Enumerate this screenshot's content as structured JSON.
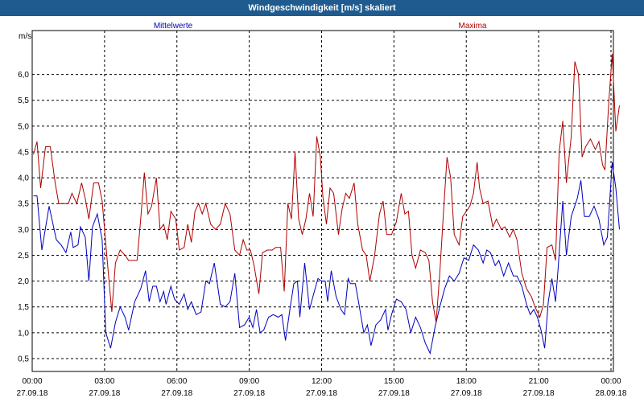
{
  "window": {
    "title": "Windgeschwindigkeit [m/s] skaliert"
  },
  "colors": {
    "mean": "#0000c0",
    "max": "#b00000",
    "grid": "#000000",
    "titlebar": "#1f5b8f"
  },
  "chart_data": {
    "type": "line",
    "title": "Windgeschwindigkeit [m/s] skaliert",
    "ylabel": "m/s",
    "xlabel": "",
    "ylim": [
      0.25,
      6.85
    ],
    "xlim": [
      0,
      24
    ],
    "grid": true,
    "yticks": [
      "0,5",
      "1,0",
      "1,5",
      "2,0",
      "2,5",
      "3,0",
      "3,5",
      "4,0",
      "4,5",
      "5,0",
      "5,5",
      "6,0"
    ],
    "ytick_values": [
      0.5,
      1.0,
      1.5,
      2.0,
      2.5,
      3.0,
      3.5,
      4.0,
      4.5,
      5.0,
      5.5,
      6.0
    ],
    "xticks": [
      {
        "time": "00:00",
        "date": "27.09.18",
        "x": 0
      },
      {
        "time": "03:00",
        "date": "27.09.18",
        "x": 3
      },
      {
        "time": "06:00",
        "date": "27.09.18",
        "x": 6
      },
      {
        "time": "09:00",
        "date": "27.09.18",
        "x": 9
      },
      {
        "time": "12:00",
        "date": "27.09.18",
        "x": 12
      },
      {
        "time": "15:00",
        "date": "27.09.18",
        "x": 15
      },
      {
        "time": "18:00",
        "date": "27.09.18",
        "x": 18
      },
      {
        "time": "21:00",
        "date": "27.09.18",
        "x": 21
      },
      {
        "time": "00:00",
        "date": "28.09.18",
        "x": 24
      }
    ],
    "series": [
      {
        "name": "Mittelwerte",
        "color": "#0000c0",
        "points": [
          [
            0.05,
            3.65
          ],
          [
            0.2,
            3.65
          ],
          [
            0.4,
            2.6
          ],
          [
            0.7,
            3.45
          ],
          [
            1.0,
            2.8
          ],
          [
            1.2,
            2.7
          ],
          [
            1.4,
            2.55
          ],
          [
            1.6,
            2.95
          ],
          [
            1.7,
            2.65
          ],
          [
            1.9,
            2.7
          ],
          [
            2.0,
            3.05
          ],
          [
            2.2,
            2.85
          ],
          [
            2.35,
            2.0
          ],
          [
            2.5,
            3.05
          ],
          [
            2.7,
            3.3
          ],
          [
            2.9,
            2.8
          ],
          [
            3.05,
            1.0
          ],
          [
            3.25,
            0.7
          ],
          [
            3.45,
            1.2
          ],
          [
            3.65,
            1.5
          ],
          [
            3.85,
            1.3
          ],
          [
            4.0,
            1.05
          ],
          [
            4.25,
            1.6
          ],
          [
            4.5,
            1.85
          ],
          [
            4.7,
            2.2
          ],
          [
            4.85,
            1.6
          ],
          [
            5.0,
            1.9
          ],
          [
            5.15,
            1.9
          ],
          [
            5.3,
            1.6
          ],
          [
            5.45,
            1.8
          ],
          [
            5.55,
            1.55
          ],
          [
            5.75,
            1.9
          ],
          [
            5.9,
            1.65
          ],
          [
            6.1,
            1.55
          ],
          [
            6.3,
            1.75
          ],
          [
            6.45,
            1.45
          ],
          [
            6.6,
            1.6
          ],
          [
            6.8,
            1.35
          ],
          [
            7.0,
            1.4
          ],
          [
            7.2,
            2.0
          ],
          [
            7.35,
            1.95
          ],
          [
            7.55,
            2.35
          ],
          [
            7.8,
            1.55
          ],
          [
            8.0,
            1.5
          ],
          [
            8.2,
            1.6
          ],
          [
            8.4,
            2.15
          ],
          [
            8.6,
            1.1
          ],
          [
            8.8,
            1.15
          ],
          [
            9.0,
            1.3
          ],
          [
            9.15,
            1.1
          ],
          [
            9.3,
            1.45
          ],
          [
            9.45,
            1.0
          ],
          [
            9.6,
            1.05
          ],
          [
            9.8,
            1.3
          ],
          [
            10.0,
            1.35
          ],
          [
            10.2,
            1.3
          ],
          [
            10.35,
            1.35
          ],
          [
            10.5,
            0.85
          ],
          [
            10.7,
            1.5
          ],
          [
            10.85,
            1.95
          ],
          [
            11.0,
            2.0
          ],
          [
            11.1,
            1.3
          ],
          [
            11.3,
            2.35
          ],
          [
            11.5,
            1.45
          ],
          [
            11.7,
            1.8
          ],
          [
            11.85,
            2.05
          ],
          [
            12.0,
            2.0
          ],
          [
            12.15,
            2.0
          ],
          [
            12.25,
            1.6
          ],
          [
            12.4,
            2.2
          ],
          [
            12.6,
            1.7
          ],
          [
            12.8,
            1.45
          ],
          [
            12.95,
            1.35
          ],
          [
            13.1,
            2.05
          ],
          [
            13.2,
            1.95
          ],
          [
            13.4,
            1.95
          ],
          [
            13.55,
            1.55
          ],
          [
            13.75,
            1.0
          ],
          [
            13.9,
            1.15
          ],
          [
            14.05,
            0.75
          ],
          [
            14.25,
            1.15
          ],
          [
            14.45,
            1.25
          ],
          [
            14.65,
            1.45
          ],
          [
            14.75,
            1.05
          ],
          [
            14.9,
            1.35
          ],
          [
            15.1,
            1.65
          ],
          [
            15.3,
            1.6
          ],
          [
            15.5,
            1.45
          ],
          [
            15.7,
            1.0
          ],
          [
            15.9,
            1.3
          ],
          [
            16.1,
            1.1
          ],
          [
            16.3,
            0.8
          ],
          [
            16.5,
            0.6
          ],
          [
            16.7,
            1.1
          ],
          [
            16.9,
            1.5
          ],
          [
            17.1,
            1.85
          ],
          [
            17.3,
            2.1
          ],
          [
            17.5,
            2.0
          ],
          [
            17.7,
            2.15
          ],
          [
            17.9,
            2.45
          ],
          [
            18.1,
            2.4
          ],
          [
            18.3,
            2.7
          ],
          [
            18.5,
            2.6
          ],
          [
            18.7,
            2.35
          ],
          [
            18.85,
            2.6
          ],
          [
            19.0,
            2.55
          ],
          [
            19.2,
            2.3
          ],
          [
            19.35,
            2.4
          ],
          [
            19.55,
            2.1
          ],
          [
            19.75,
            2.35
          ],
          [
            19.95,
            2.1
          ],
          [
            20.1,
            2.1
          ],
          [
            20.3,
            1.9
          ],
          [
            20.5,
            1.55
          ],
          [
            20.65,
            1.35
          ],
          [
            20.8,
            1.45
          ],
          [
            20.95,
            1.3
          ],
          [
            21.1,
            1.05
          ],
          [
            21.25,
            0.7
          ],
          [
            21.4,
            1.6
          ],
          [
            21.55,
            2.05
          ],
          [
            21.7,
            1.6
          ],
          [
            21.8,
            2.2
          ],
          [
            22.0,
            3.55
          ],
          [
            22.15,
            2.5
          ],
          [
            22.35,
            3.25
          ],
          [
            22.6,
            3.6
          ],
          [
            22.75,
            3.95
          ],
          [
            22.9,
            3.25
          ],
          [
            23.1,
            3.25
          ],
          [
            23.3,
            3.45
          ],
          [
            23.5,
            3.2
          ],
          [
            23.7,
            2.7
          ],
          [
            23.85,
            2.85
          ],
          [
            24.05,
            4.3
          ],
          [
            24.2,
            3.8
          ],
          [
            24.35,
            3.0
          ]
        ]
      },
      {
        "name": "Maxima",
        "color": "#b00000",
        "points": [
          [
            0.05,
            4.45
          ],
          [
            0.2,
            4.7
          ],
          [
            0.35,
            3.8
          ],
          [
            0.55,
            4.6
          ],
          [
            0.75,
            4.6
          ],
          [
            0.95,
            3.9
          ],
          [
            1.1,
            3.5
          ],
          [
            1.3,
            3.5
          ],
          [
            1.5,
            3.5
          ],
          [
            1.65,
            3.7
          ],
          [
            1.85,
            3.5
          ],
          [
            2.05,
            3.9
          ],
          [
            2.2,
            3.6
          ],
          [
            2.35,
            3.2
          ],
          [
            2.55,
            3.9
          ],
          [
            2.75,
            3.9
          ],
          [
            2.9,
            3.55
          ],
          [
            3.1,
            2.45
          ],
          [
            3.3,
            1.4
          ],
          [
            3.45,
            2.35
          ],
          [
            3.65,
            2.6
          ],
          [
            3.85,
            2.5
          ],
          [
            4.0,
            2.4
          ],
          [
            4.2,
            2.4
          ],
          [
            4.35,
            2.4
          ],
          [
            4.5,
            3.2
          ],
          [
            4.65,
            4.1
          ],
          [
            4.8,
            3.3
          ],
          [
            4.95,
            3.45
          ],
          [
            5.15,
            4.0
          ],
          [
            5.3,
            3.0
          ],
          [
            5.45,
            3.1
          ],
          [
            5.6,
            2.8
          ],
          [
            5.75,
            3.35
          ],
          [
            5.95,
            3.2
          ],
          [
            6.1,
            2.6
          ],
          [
            6.3,
            2.65
          ],
          [
            6.45,
            3.1
          ],
          [
            6.6,
            2.75
          ],
          [
            6.75,
            3.35
          ],
          [
            6.9,
            3.5
          ],
          [
            7.05,
            3.3
          ],
          [
            7.2,
            3.5
          ],
          [
            7.4,
            3.1
          ],
          [
            7.6,
            3.0
          ],
          [
            7.8,
            3.1
          ],
          [
            8.0,
            3.5
          ],
          [
            8.2,
            3.3
          ],
          [
            8.4,
            2.6
          ],
          [
            8.6,
            2.5
          ],
          [
            8.75,
            2.8
          ],
          [
            8.9,
            2.6
          ],
          [
            9.05,
            2.6
          ],
          [
            9.2,
            2.3
          ],
          [
            9.4,
            1.75
          ],
          [
            9.55,
            2.55
          ],
          [
            9.75,
            2.6
          ],
          [
            9.95,
            2.6
          ],
          [
            10.1,
            2.65
          ],
          [
            10.3,
            2.65
          ],
          [
            10.45,
            1.8
          ],
          [
            10.6,
            3.5
          ],
          [
            10.75,
            3.2
          ],
          [
            10.9,
            4.5
          ],
          [
            11.05,
            3.2
          ],
          [
            11.2,
            2.9
          ],
          [
            11.35,
            3.2
          ],
          [
            11.5,
            3.7
          ],
          [
            11.65,
            3.25
          ],
          [
            11.8,
            4.8
          ],
          [
            11.95,
            4.4
          ],
          [
            12.05,
            3.65
          ],
          [
            12.2,
            3.1
          ],
          [
            12.35,
            3.8
          ],
          [
            12.5,
            3.7
          ],
          [
            12.7,
            2.9
          ],
          [
            12.85,
            3.4
          ],
          [
            13.0,
            3.7
          ],
          [
            13.15,
            3.6
          ],
          [
            13.35,
            3.9
          ],
          [
            13.5,
            3.1
          ],
          [
            13.7,
            2.6
          ],
          [
            13.85,
            2.5
          ],
          [
            14.0,
            2.0
          ],
          [
            14.2,
            2.5
          ],
          [
            14.4,
            3.3
          ],
          [
            14.55,
            3.55
          ],
          [
            14.7,
            2.9
          ],
          [
            14.9,
            2.9
          ],
          [
            15.1,
            3.15
          ],
          [
            15.3,
            3.7
          ],
          [
            15.45,
            3.3
          ],
          [
            15.6,
            3.35
          ],
          [
            15.75,
            2.5
          ],
          [
            15.9,
            2.25
          ],
          [
            16.1,
            2.6
          ],
          [
            16.3,
            2.55
          ],
          [
            16.45,
            2.4
          ],
          [
            16.6,
            1.6
          ],
          [
            16.75,
            1.2
          ],
          [
            16.9,
            2.15
          ],
          [
            17.05,
            3.3
          ],
          [
            17.2,
            4.4
          ],
          [
            17.35,
            4.0
          ],
          [
            17.5,
            2.9
          ],
          [
            17.7,
            2.7
          ],
          [
            17.85,
            3.25
          ],
          [
            18.0,
            3.35
          ],
          [
            18.15,
            3.45
          ],
          [
            18.3,
            3.7
          ],
          [
            18.45,
            4.3
          ],
          [
            18.55,
            3.8
          ],
          [
            18.7,
            3.5
          ],
          [
            18.9,
            3.55
          ],
          [
            19.1,
            3.05
          ],
          [
            19.25,
            3.2
          ],
          [
            19.45,
            3.0
          ],
          [
            19.6,
            3.05
          ],
          [
            19.8,
            2.85
          ],
          [
            19.95,
            3.0
          ],
          [
            20.1,
            2.8
          ],
          [
            20.3,
            2.15
          ],
          [
            20.5,
            1.85
          ],
          [
            20.7,
            1.7
          ],
          [
            20.85,
            1.5
          ],
          [
            21.05,
            1.3
          ],
          [
            21.2,
            1.55
          ],
          [
            21.35,
            2.65
          ],
          [
            21.55,
            2.7
          ],
          [
            21.7,
            2.4
          ],
          [
            21.85,
            4.5
          ],
          [
            22.0,
            5.1
          ],
          [
            22.15,
            3.9
          ],
          [
            22.35,
            4.8
          ],
          [
            22.5,
            6.25
          ],
          [
            22.65,
            6.0
          ],
          [
            22.8,
            4.4
          ],
          [
            22.95,
            4.6
          ],
          [
            23.15,
            4.75
          ],
          [
            23.35,
            4.55
          ],
          [
            23.5,
            4.7
          ],
          [
            23.65,
            4.25
          ],
          [
            23.75,
            4.15
          ],
          [
            23.9,
            5.4
          ],
          [
            24.05,
            6.4
          ],
          [
            24.2,
            4.9
          ],
          [
            24.35,
            5.4
          ]
        ]
      }
    ]
  }
}
